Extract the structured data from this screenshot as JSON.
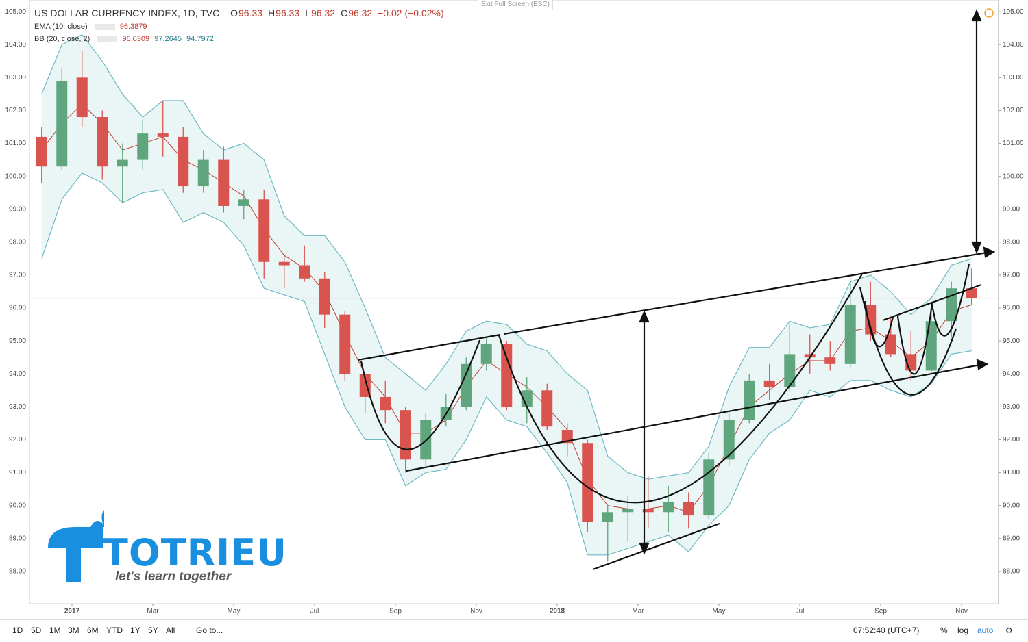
{
  "header": {
    "title": "US DOLLAR CURRENCY INDEX, 1D, TVC",
    "ohlc": [
      {
        "label": "O",
        "value": 96.33
      },
      {
        "label": "H",
        "value": 96.33
      },
      {
        "label": "L",
        "value": 96.32
      },
      {
        "label": "C",
        "value": 96.32
      }
    ],
    "change": "−0.02 (−0.02%)",
    "ema": {
      "label": "EMA (10, close)",
      "value": 96.3879
    },
    "bb": {
      "label": "BB (20, close, 2)",
      "values": [
        96.0309,
        97.2645,
        94.7972
      ]
    },
    "exit": "Exit Full Screen (ESC)"
  },
  "toolbar": {
    "ranges": [
      "1D",
      "5D",
      "1M",
      "3M",
      "6M",
      "YTD",
      "1Y",
      "5Y",
      "All"
    ],
    "goto": "Go to...",
    "clock": "07:52:40 (UTC+7)",
    "options": [
      "%",
      "log",
      "auto"
    ]
  },
  "logo": {
    "name": "TOTRIEU",
    "slogan": "let's learn together"
  },
  "chart_data": {
    "type": "candlestick",
    "open": [
      101.2,
      100.3,
      103.0,
      101.8,
      100.3,
      100.5,
      101.3,
      101.2,
      99.7,
      100.5,
      99.1,
      99.3,
      97.4,
      97.3,
      96.9,
      95.8,
      94.0,
      93.3,
      92.9,
      91.4,
      92.6,
      93.0,
      94.3,
      94.9,
      93.0,
      93.5,
      92.3,
      91.9,
      89.5,
      89.8,
      89.9,
      89.8,
      90.1,
      89.7,
      91.4,
      92.6,
      93.8,
      93.6,
      94.6,
      94.5,
      94.3,
      96.1,
      95.2,
      94.6,
      94.1,
      95.6,
      96.6
    ],
    "high": [
      101.5,
      103.3,
      103.8,
      102.0,
      101.0,
      101.7,
      102.3,
      101.5,
      100.8,
      100.9,
      99.6,
      99.6,
      97.6,
      97.9,
      97.1,
      95.9,
      94.0,
      93.8,
      93.0,
      92.8,
      93.4,
      94.5,
      95.1,
      95.0,
      93.9,
      93.7,
      92.5,
      92.0,
      90.0,
      90.3,
      90.9,
      90.6,
      90.4,
      91.6,
      92.8,
      94.0,
      94.3,
      95.5,
      95.2,
      95.0,
      96.9,
      96.8,
      95.7,
      95.3,
      96.0,
      96.8,
      97.2
    ],
    "low": [
      99.8,
      100.2,
      101.5,
      99.9,
      99.2,
      100.2,
      100.6,
      99.5,
      99.5,
      98.9,
      98.7,
      96.9,
      96.6,
      96.8,
      95.4,
      93.8,
      92.8,
      92.5,
      91.0,
      91.2,
      92.4,
      92.9,
      94.1,
      92.9,
      92.5,
      92.3,
      91.5,
      89.2,
      88.3,
      88.9,
      89.3,
      89.2,
      89.3,
      89.6,
      91.2,
      92.5,
      93.2,
      93.5,
      94.0,
      94.1,
      94.2,
      95.0,
      94.5,
      93.8,
      94.0,
      95.1,
      96.1
    ],
    "close": [
      100.3,
      102.9,
      101.8,
      100.3,
      100.5,
      101.3,
      101.2,
      99.7,
      100.5,
      99.1,
      99.3,
      97.4,
      97.3,
      96.9,
      95.8,
      94.0,
      93.3,
      92.9,
      91.4,
      92.6,
      93.0,
      94.3,
      94.9,
      93.0,
      93.5,
      92.4,
      91.9,
      89.5,
      89.8,
      89.9,
      89.8,
      90.1,
      89.7,
      91.4,
      92.6,
      93.8,
      93.6,
      94.6,
      94.5,
      94.3,
      96.1,
      95.2,
      94.6,
      94.1,
      95.6,
      96.6,
      96.3
    ],
    "ema": [
      100.8,
      101.6,
      102.2,
      101.6,
      100.8,
      101.0,
      101.2,
      100.5,
      100.2,
      99.8,
      99.4,
      98.4,
      97.6,
      97.2,
      96.5,
      95.2,
      94.0,
      93.3,
      92.2,
      92.2,
      92.6,
      93.6,
      94.4,
      94.0,
      93.6,
      93.0,
      92.3,
      90.8,
      90.0,
      89.9,
      89.9,
      90.0,
      89.8,
      90.6,
      91.8,
      93.0,
      93.5,
      94.0,
      94.4,
      94.4,
      95.3,
      95.4,
      95.0,
      94.5,
      95.0,
      95.9,
      96.1
    ],
    "bb_upper": [
      102.5,
      104.0,
      104.3,
      103.5,
      102.5,
      101.8,
      102.3,
      102.3,
      101.3,
      100.8,
      101.0,
      100.5,
      98.8,
      98.2,
      98.2,
      97.4,
      96.0,
      94.5,
      94.0,
      93.5,
      94.3,
      95.3,
      95.6,
      95.5,
      94.9,
      94.7,
      94.0,
      93.5,
      91.5,
      91.0,
      90.8,
      90.9,
      91.0,
      91.8,
      93.6,
      94.8,
      94.8,
      95.6,
      95.4,
      95.5,
      96.8,
      97.0,
      96.5,
      95.8,
      96.3,
      97.3,
      97.5
    ],
    "bb_lower": [
      97.5,
      99.3,
      100.1,
      99.8,
      99.2,
      99.5,
      99.6,
      98.6,
      98.9,
      98.6,
      97.9,
      96.6,
      96.4,
      96.2,
      94.6,
      93.0,
      92.0,
      92.0,
      90.6,
      91.0,
      91.1,
      92.0,
      93.3,
      92.6,
      92.4,
      91.6,
      90.7,
      88.5,
      88.5,
      88.7,
      88.9,
      89.1,
      88.6,
      89.4,
      90.0,
      91.4,
      92.2,
      92.6,
      93.5,
      93.3,
      93.8,
      93.8,
      93.5,
      93.3,
      93.7,
      94.6,
      94.7
    ],
    "up_color": "#5fa67f",
    "down_color": "#d9534f",
    "ema_color": "#c0392b",
    "bb_color": "#6cb8c4",
    "bb_fill": "#eaf6f6",
    "ylim": [
      87.02,
      105.19
    ],
    "yticks": [
      {
        "value": 88,
        "label": "88.00"
      },
      {
        "value": 89,
        "label": "89.00"
      },
      {
        "value": 90,
        "label": "90.00"
      },
      {
        "value": 91,
        "label": "91.00"
      },
      {
        "value": 92,
        "label": "92.00"
      },
      {
        "value": 93,
        "label": "93.00"
      },
      {
        "value": 94,
        "label": "94.00"
      },
      {
        "value": 95,
        "label": "95.00"
      },
      {
        "value": 96,
        "label": "96.00"
      },
      {
        "value": 97,
        "label": "97.00"
      },
      {
        "value": 98,
        "label": "98.00"
      },
      {
        "value": 99,
        "label": "99.00"
      },
      {
        "value": 100,
        "label": "100.00"
      },
      {
        "value": 101,
        "label": "101.00"
      },
      {
        "value": 102,
        "label": "102.00"
      },
      {
        "value": 103,
        "label": "103.00"
      },
      {
        "value": 104,
        "label": "104.00"
      },
      {
        "value": 105,
        "label": "105.00"
      }
    ],
    "xticks": [
      {
        "value": 2,
        "label": "2017"
      },
      {
        "value": 6,
        "label": "Mar"
      },
      {
        "value": 10,
        "label": "May"
      },
      {
        "value": 14,
        "label": "Jul"
      },
      {
        "value": 18,
        "label": "Sep"
      },
      {
        "value": 22,
        "label": "Nov"
      },
      {
        "value": 26,
        "label": "2018"
      },
      {
        "value": 30,
        "label": "Mar"
      },
      {
        "value": 34,
        "label": "May"
      },
      {
        "value": 38,
        "label": "Jul"
      },
      {
        "value": 42,
        "label": "Sep"
      },
      {
        "value": 46,
        "label": "Nov"
      }
    ]
  }
}
